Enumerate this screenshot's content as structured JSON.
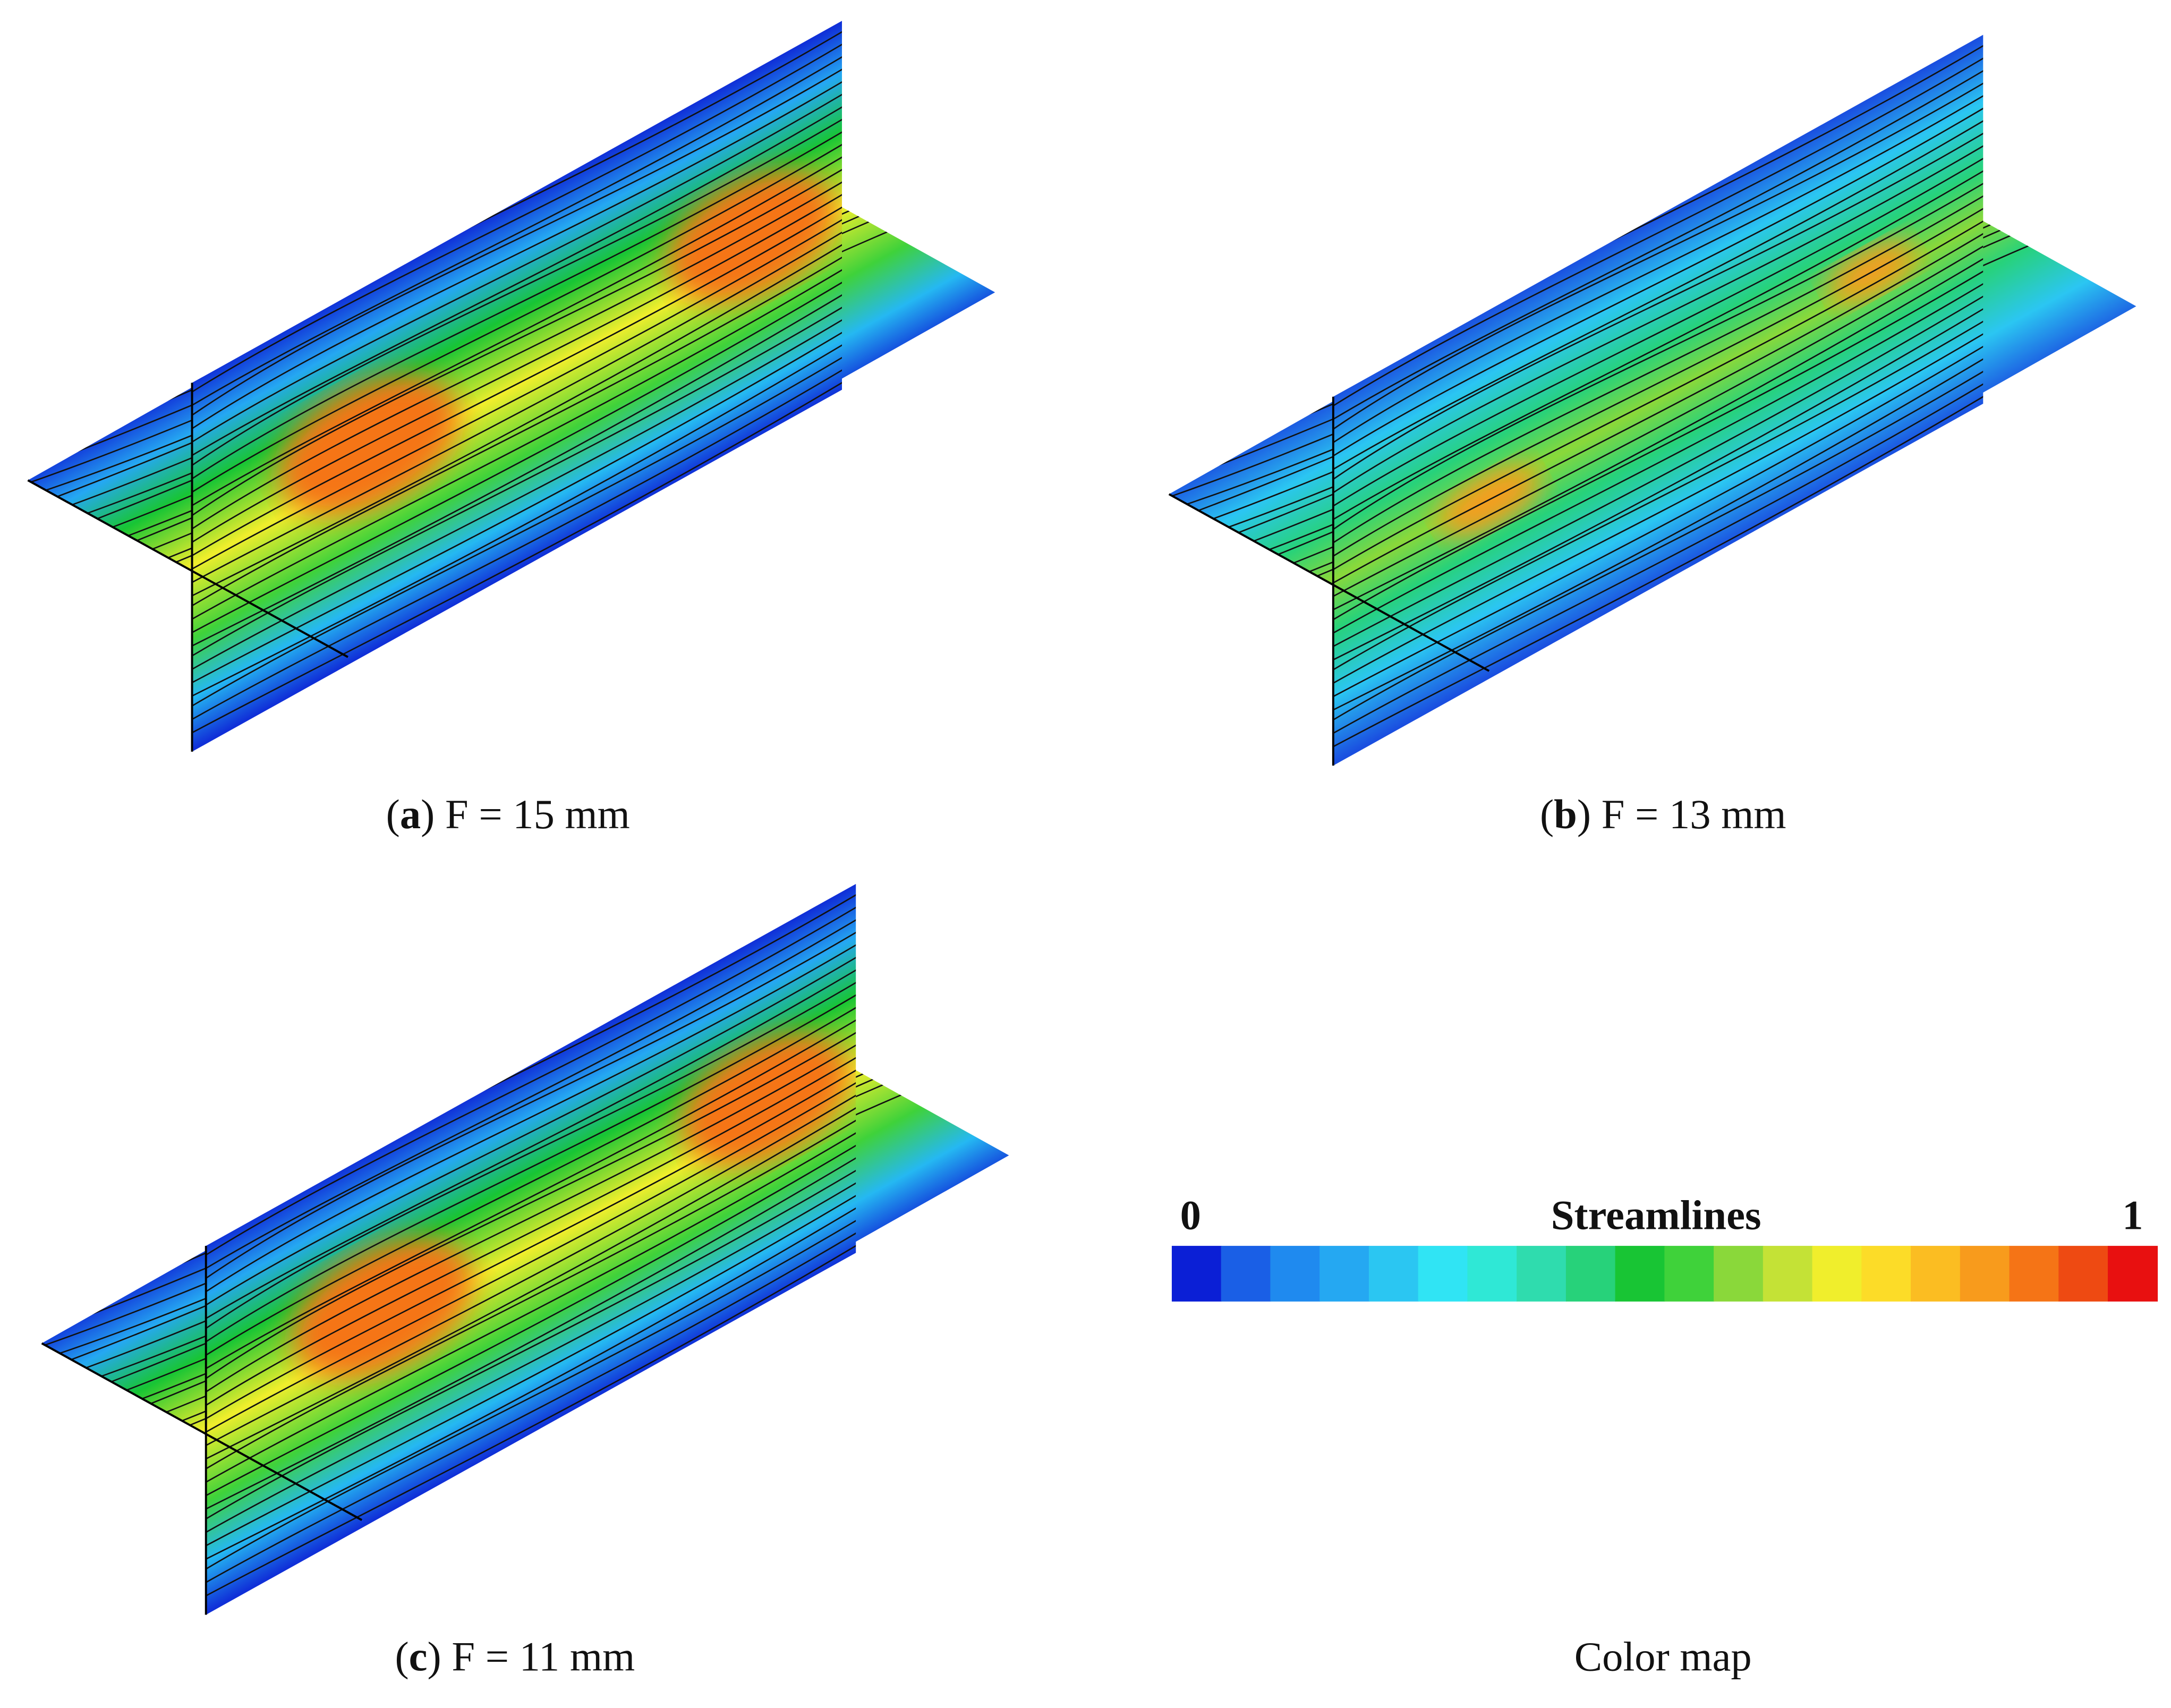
{
  "panels": [
    {
      "caption": {
        "open": "(",
        "label": "a",
        "rest": ") F = 15 mm"
      }
    },
    {
      "caption": {
        "open": "(",
        "label": "b",
        "rest": ") F = 13 mm"
      }
    },
    {
      "caption": {
        "open": "(",
        "label": "c",
        "rest": ") F = 11 mm"
      }
    }
  ],
  "colormap": {
    "min": 0,
    "title": "Streamlines",
    "max": 1,
    "caption": "Color map",
    "colors": [
      "#0b1fd6",
      "#1a5fe6",
      "#1f8aef",
      "#25a8f2",
      "#2bc6f2",
      "#30e4f4",
      "#2fe8d6",
      "#2fdcae",
      "#27d27a",
      "#18c534",
      "#3fd23a",
      "#8ad83a",
      "#c4e236",
      "#f0ee2c",
      "#fcdc28",
      "#fbbd22",
      "#f89b1c",
      "#f57416",
      "#ee4a12",
      "#e81010"
    ]
  }
}
